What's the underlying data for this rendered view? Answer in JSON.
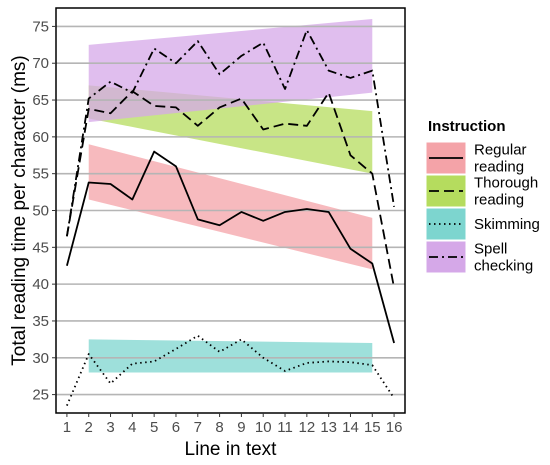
{
  "chart_data": {
    "type": "line",
    "xlabel": "Line in text",
    "ylabel": "Total reading time per character (ms)",
    "xlim": [
      0.5,
      16.5
    ],
    "ylim": [
      22.5,
      77.5
    ],
    "x_ticks": [
      1,
      2,
      3,
      4,
      5,
      6,
      7,
      8,
      9,
      10,
      11,
      12,
      13,
      14,
      15,
      16
    ],
    "y_ticks": [
      25,
      30,
      35,
      40,
      45,
      50,
      55,
      60,
      65,
      70,
      75
    ],
    "grid": true,
    "legend": {
      "title": "Instruction",
      "position": "right"
    },
    "series": [
      {
        "name": "Regular reading",
        "legend_lines": [
          "Regular",
          "reading"
        ],
        "color": "#f4a3a8",
        "dash": "solid",
        "x": [
          1,
          2,
          3,
          4,
          5,
          6,
          7,
          8,
          9,
          10,
          11,
          12,
          13,
          14,
          15,
          16
        ],
        "values": [
          42.5,
          53.8,
          53.6,
          51.5,
          58,
          56,
          48.8,
          48,
          49.8,
          48.6,
          49.8,
          50.2,
          49.8,
          44.8,
          42.8,
          32
        ],
        "band": {
          "x": [
            2,
            15
          ],
          "lower": [
            51.5,
            42
          ],
          "upper": [
            59,
            49
          ]
        }
      },
      {
        "name": "Thorough reading",
        "legend_lines": [
          "Thorough",
          "reading"
        ],
        "color": "#b5dc5e",
        "dash": "long",
        "x": [
          1,
          2,
          3,
          4,
          5,
          6,
          7,
          8,
          9,
          10,
          11,
          12,
          13,
          14,
          15,
          16
        ],
        "values": [
          46.5,
          63.8,
          63.2,
          66.2,
          64.2,
          64,
          61.5,
          64,
          65.2,
          61,
          61.8,
          61.5,
          66,
          57.5,
          55,
          39.5
        ],
        "band": {
          "x": [
            2,
            15
          ],
          "lower": [
            62.5,
            55
          ],
          "upper": [
            67,
            63.5
          ]
        }
      },
      {
        "name": "Skimming",
        "legend_lines": [
          "Skimming"
        ],
        "color": "#7dd5cf",
        "dash": "dotted",
        "x": [
          1,
          2,
          3,
          4,
          5,
          6,
          7,
          8,
          9,
          10,
          11,
          12,
          13,
          14,
          15,
          16
        ],
        "values": [
          23.5,
          30.5,
          26.5,
          29.2,
          29.5,
          31.2,
          33,
          30.8,
          32.5,
          30,
          28.2,
          29.3,
          29.5,
          29.4,
          29,
          24.5
        ],
        "band": {
          "x": [
            2,
            15
          ],
          "lower": [
            28,
            28
          ],
          "upper": [
            32.5,
            32
          ]
        }
      },
      {
        "name": "Spell checking",
        "legend_lines": [
          "Spell",
          "checking"
        ],
        "color": "#d5a8e8",
        "dash": "dotdash",
        "x": [
          1,
          2,
          3,
          4,
          5,
          6,
          7,
          8,
          9,
          10,
          11,
          12,
          13,
          14,
          15,
          16
        ],
        "values": [
          46.5,
          65.2,
          67.5,
          66,
          72,
          70,
          73,
          68.5,
          71,
          72.8,
          66.5,
          74.5,
          69,
          68,
          69,
          50.5
        ],
        "band": {
          "x": [
            2,
            15
          ],
          "lower": [
            62,
            66
          ],
          "upper": [
            72.5,
            76
          ]
        }
      }
    ]
  }
}
